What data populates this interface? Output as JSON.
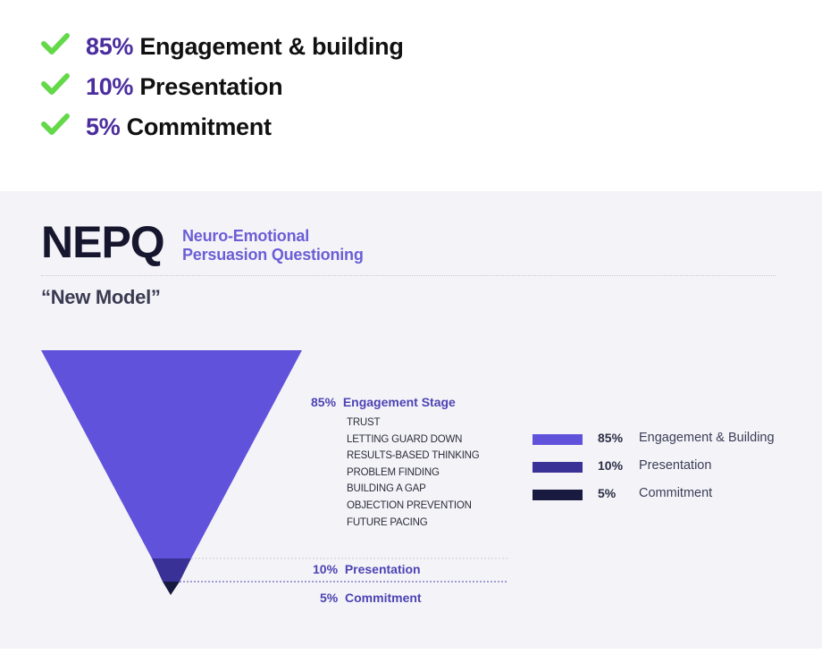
{
  "checklist": [
    {
      "pct": "85%",
      "text": "Engagement & building",
      "icon": "check-icon"
    },
    {
      "pct": "10%",
      "text": "Presentation",
      "icon": "check-icon"
    },
    {
      "pct": "5%",
      "text": "Commitment",
      "icon": "check-icon"
    }
  ],
  "brand": {
    "title": "NEPQ",
    "subtitle_line1": "Neuro-Emotional",
    "subtitle_line2": "Persuasion Questioning"
  },
  "model_label": "“New Model”",
  "funnel": {
    "stages": [
      {
        "pct": "85%",
        "name": "Engagement Stage",
        "share": 0.85
      },
      {
        "pct": "10%",
        "name": "Presentation",
        "share": 0.1
      },
      {
        "pct": "5%",
        "name": "Commitment",
        "share": 0.05
      }
    ],
    "engagement_items": [
      "TRUST",
      "LETTING GUARD DOWN",
      "RESULTS-BASED THINKING",
      "PROBLEM FINDING",
      "BUILDING A GAP",
      "OBJECTION PREVENTION",
      "FUTURE PACING"
    ]
  },
  "legend": [
    {
      "pct": "85%",
      "name": "Engagement & Building"
    },
    {
      "pct": "10%",
      "name": "Presentation"
    },
    {
      "pct": "5%",
      "name": "Commitment"
    }
  ],
  "colors": {
    "check": "#63d94a",
    "accent_purple": "#4b2d9e",
    "engagement": "#6052db",
    "presentation": "#3a3197",
    "commitment": "#181a40",
    "label_purple": "#4c43b4",
    "panel_bg": "#f4f4f8"
  }
}
